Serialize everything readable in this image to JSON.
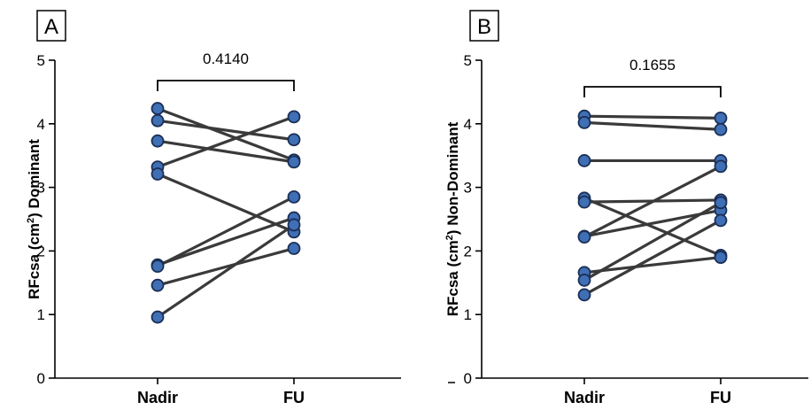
{
  "chart_data": [
    {
      "type": "scatter",
      "panel_label": "A",
      "ylabel_main": "RFcsa (cm",
      "ylabel_sup": "2",
      "ylabel_rest": ") Dominant",
      "categories": [
        "Nadir",
        "FU"
      ],
      "ylim": [
        0,
        5
      ],
      "yticks": [
        "0",
        "1",
        "2",
        "3",
        "4",
        "5"
      ],
      "p_value": "0.4140",
      "pairs": [
        [
          4.24,
          3.43
        ],
        [
          4.05,
          3.75
        ],
        [
          3.73,
          3.4
        ],
        [
          3.32,
          4.11
        ],
        [
          3.21,
          2.3
        ],
        [
          1.78,
          2.52
        ],
        [
          1.76,
          2.85
        ],
        [
          1.46,
          2.04
        ],
        [
          0.96,
          2.41
        ]
      ]
    },
    {
      "type": "scatter",
      "panel_label": "B",
      "ylabel_main": "RFcsa (cm",
      "ylabel_sup": "2",
      "ylabel_rest": ") Non-Dominant",
      "categories": [
        "Nadir",
        "FU"
      ],
      "ylim": [
        0,
        5
      ],
      "yticks": [
        "0",
        "1",
        "2",
        "3",
        "4",
        "5"
      ],
      "p_value": "0.1655",
      "pairs": [
        [
          4.12,
          4.09
        ],
        [
          4.02,
          3.91
        ],
        [
          3.42,
          3.42
        ],
        [
          2.83,
          1.93
        ],
        [
          2.77,
          2.8
        ],
        [
          2.23,
          2.64
        ],
        [
          2.22,
          3.33
        ],
        [
          1.66,
          1.9
        ],
        [
          1.54,
          2.76
        ],
        [
          1.31,
          2.48
        ]
      ]
    }
  ]
}
